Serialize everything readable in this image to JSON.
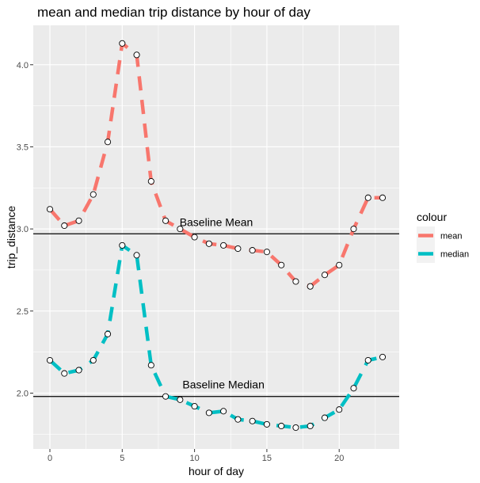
{
  "chart_data": {
    "type": "line",
    "title": "mean and median trip distance by hour of day",
    "xlabel": "hour of day",
    "ylabel": "trip_distance",
    "xlim": [
      -1.15,
      24.15
    ],
    "ylim": [
      1.66,
      4.24
    ],
    "x_ticks": [
      0,
      5,
      10,
      15,
      20
    ],
    "x_tick_labels": [
      "0",
      "5",
      "10",
      "15",
      "20"
    ],
    "y_ticks": [
      2.0,
      2.5,
      3.0,
      3.5,
      4.0
    ],
    "y_tick_labels": [
      "2.0",
      "2.5",
      "3.0",
      "3.5",
      "4.0"
    ],
    "grid": true,
    "legend": {
      "title": "colour",
      "position": "right"
    },
    "x": [
      0,
      1,
      2,
      3,
      4,
      5,
      6,
      7,
      8,
      9,
      10,
      11,
      12,
      13,
      14,
      15,
      16,
      17,
      18,
      19,
      20,
      21,
      22,
      23
    ],
    "series": [
      {
        "name": "mean",
        "color": "#F8766D",
        "values": [
          3.12,
          3.02,
          3.05,
          3.21,
          3.53,
          4.13,
          4.06,
          3.29,
          3.05,
          3.0,
          2.95,
          2.91,
          2.9,
          2.88,
          2.87,
          2.86,
          2.78,
          2.68,
          2.65,
          2.72,
          2.78,
          3.0,
          3.19,
          3.19
        ]
      },
      {
        "name": "median",
        "color": "#00BFC4",
        "values": [
          2.2,
          2.12,
          2.14,
          2.2,
          2.36,
          2.9,
          2.84,
          2.17,
          1.98,
          1.96,
          1.92,
          1.88,
          1.89,
          1.84,
          1.83,
          1.81,
          1.8,
          1.79,
          1.8,
          1.85,
          1.9,
          2.03,
          2.2,
          2.22
        ]
      }
    ],
    "hlines": [
      {
        "label": "Baseline Mean",
        "y": 2.97,
        "label_x": 11.5
      },
      {
        "label": "Baseline Median",
        "y": 1.98,
        "label_x": 12.0
      }
    ]
  }
}
